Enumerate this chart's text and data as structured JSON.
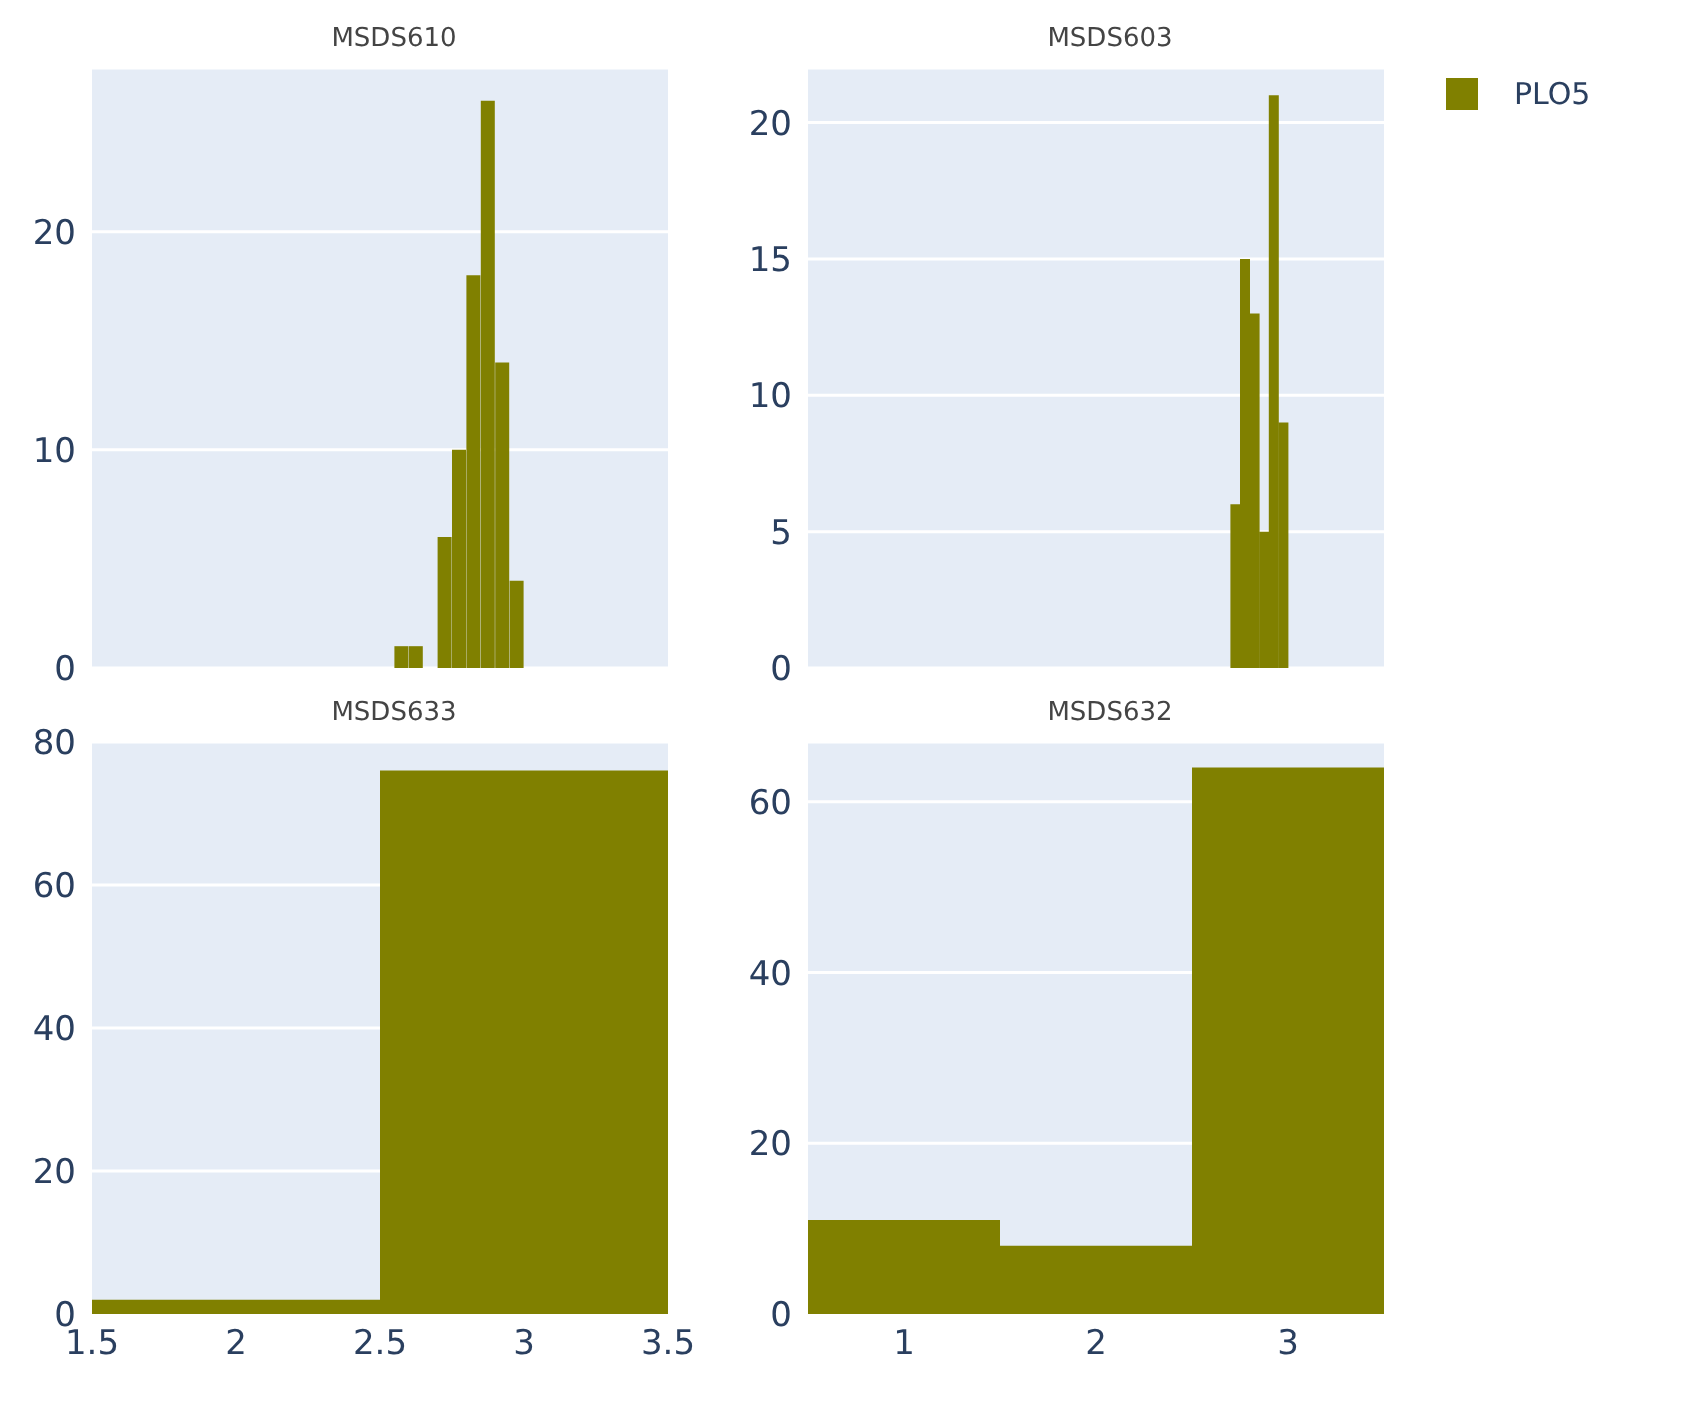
{
  "chart_data": [
    {
      "type": "histogram",
      "title": "MSDS610",
      "bins": [
        2.55,
        2.6,
        2.65,
        2.7,
        2.75,
        2.8,
        2.85,
        2.9,
        2.95,
        3.0
      ],
      "series": [
        {
          "color": "#808000",
          "values": [
            1,
            1,
            0,
            6,
            10,
            18,
            26,
            14,
            4
          ]
        }
      ],
      "xlim": [
        1.5,
        3.5
      ],
      "ylim": [
        0,
        27.5
      ],
      "yticks": [
        0,
        10,
        20
      ],
      "grid": "y",
      "tick_labels": "y"
    },
    {
      "type": "histogram",
      "title": "MSDS603",
      "bins": [
        2.7,
        2.75,
        2.8,
        2.85,
        2.9,
        2.95,
        3.0
      ],
      "series": [
        {
          "name": "PLO5",
          "color": "#808000",
          "values": [
            6,
            15,
            13,
            5,
            21,
            9
          ]
        }
      ],
      "xlim": [
        0.5,
        3.5
      ],
      "ylim": [
        0,
        22
      ],
      "yticks": [
        0,
        5,
        10,
        15,
        20
      ],
      "grid": "y",
      "tick_labels": "y",
      "legend": "top right"
    },
    {
      "type": "histogram",
      "title": "MSDS633",
      "bins": [
        1.5,
        2.5,
        3.5
      ],
      "series": [
        {
          "color": "#808000",
          "values": [
            2,
            76
          ]
        }
      ],
      "xlim": [
        1.5,
        3.5
      ],
      "xticks": [
        1.5,
        2,
        2.5,
        3,
        3.5
      ],
      "ylim": [
        0,
        80
      ],
      "yticks": [
        0,
        20,
        40,
        60,
        80
      ],
      "grid": "y"
    },
    {
      "type": "histogram",
      "title": "MSDS632",
      "bins": [
        0.5,
        1.5,
        2.5,
        3.5
      ],
      "series": [
        {
          "color": "#808000",
          "values": [
            11,
            8,
            64
          ]
        }
      ],
      "xlim": [
        0.5,
        3.5
      ],
      "xticks": [
        1,
        2,
        3
      ],
      "ylim": [
        0,
        67
      ],
      "yticks": [
        0,
        20,
        40,
        60
      ],
      "grid": "y"
    }
  ]
}
